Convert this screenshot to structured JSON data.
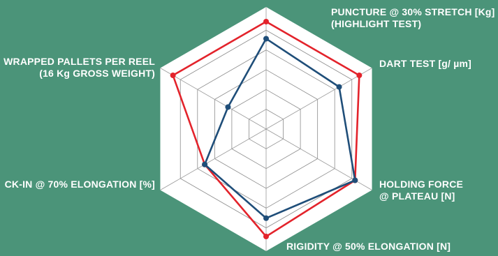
{
  "chart_data": {
    "type": "radar",
    "title": "",
    "axes": [
      {
        "lines": [
          "PUNCTURE @ 30% STRETCH [Kg]",
          "(HIGHLIGHT TEST)"
        ]
      },
      {
        "lines": [
          "DART TEST [g/ µm]"
        ]
      },
      {
        "lines": [
          "HOLDING FORCE",
          "@ PLATEAU [N]"
        ]
      },
      {
        "lines": [
          "RIGIDITY @ 50% ELONGATION [N]"
        ]
      },
      {
        "lines": [
          "CK-IN @ 70% ELONGATION [%]"
        ]
      },
      {
        "lines": [
          "WRAPPED PALLETS PER REEL",
          "(16 Kg GROSS WEIGHT)"
        ]
      }
    ],
    "rings": 5,
    "range": [
      0,
      1
    ],
    "series": [
      {
        "color": "#e3232b",
        "values": [
          0.88,
          0.88,
          0.84,
          0.88,
          0.58,
          0.88
        ]
      },
      {
        "color": "#1f4e79",
        "values": [
          0.74,
          0.69,
          0.84,
          0.73,
          0.58,
          0.36
        ]
      }
    ],
    "grid": true,
    "legend": "none"
  }
}
